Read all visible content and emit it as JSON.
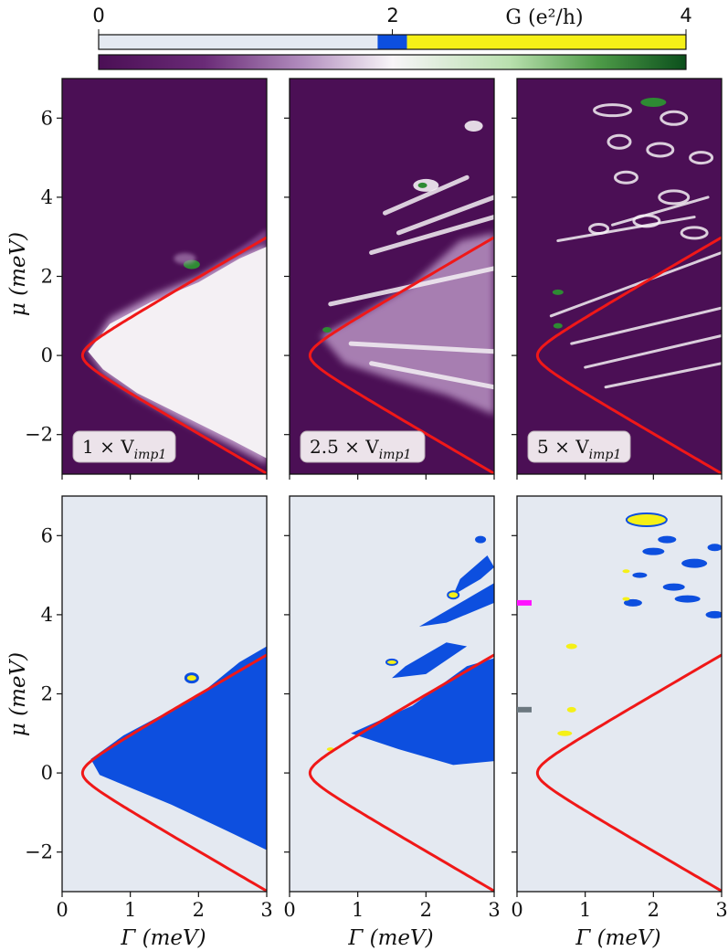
{
  "colors": {
    "dark_purple": "#4b0f55",
    "mid_purple": "#7a3d86",
    "light_purple": "#b892c2",
    "pale": "#f4f0f4",
    "green": "#2e8b33",
    "light_bg": "#e4e9f1",
    "blue": "#0d4fdf",
    "yellow": "#f5f017",
    "red": "#f01818",
    "magenta": "#ff12ff",
    "gray": "#6c7880"
  },
  "chart_data": {
    "type": "heatmap",
    "colorbar": {
      "title": "G (e²/h)",
      "range": [
        0,
        4
      ],
      "ticks": [
        {
          "value": 0,
          "label": "0"
        },
        {
          "value": 2,
          "label": "2"
        },
        {
          "value": 4,
          "label": "4"
        }
      ],
      "discrete_bands": [
        {
          "from": 0,
          "to": 1.9,
          "color": "#e4e9f1"
        },
        {
          "from": 1.9,
          "to": 2.1,
          "color": "#0d4fdf"
        },
        {
          "from": 2.1,
          "to": 4,
          "color": "#f5f017"
        }
      ],
      "continuous_stops": [
        "#4b0f55",
        "#f8f5f8",
        "#0b4f1c"
      ]
    },
    "xlabel": "Γ (meV)",
    "ylabel": "μ (meV)",
    "xlim": [
      0,
      3
    ],
    "ylim": [
      -3,
      7
    ],
    "xticks": [
      {
        "value": 0,
        "label": "0"
      },
      {
        "value": 1,
        "label": "1"
      },
      {
        "value": 2,
        "label": "2"
      },
      {
        "value": 3,
        "label": "3"
      }
    ],
    "yticks": [
      {
        "value": -2,
        "label": "−2"
      },
      {
        "value": 0,
        "label": "0"
      },
      {
        "value": 2,
        "label": "2"
      },
      {
        "value": 4,
        "label": "4"
      },
      {
        "value": 6,
        "label": "6"
      }
    ],
    "boundary_curve": {
      "formula": "mu = sqrt(Gamma^2 - 0.3^2) (upper branch) and -sqrt(Gamma^2 - 0.3^2) (lower branch)",
      "gamma_min": 0.3,
      "color": "#f01818"
    },
    "columns": [
      {
        "id": "c1",
        "label_prefix": "1",
        "label": "1 × V",
        "subscript": "imp1"
      },
      {
        "id": "c2",
        "label_prefix": "2.5",
        "label": "2.5 × V",
        "subscript": "imp1"
      },
      {
        "id": "c3",
        "label_prefix": "5",
        "label": "5 × V",
        "subscript": "imp1"
      }
    ],
    "markers": [
      {
        "panel": "bottom-c3",
        "mu": 4.3,
        "color": "#ff12ff",
        "name": "magenta-marker"
      },
      {
        "panel": "bottom-c3",
        "mu": 1.6,
        "color": "#6c7880",
        "name": "gray-marker"
      }
    ]
  }
}
